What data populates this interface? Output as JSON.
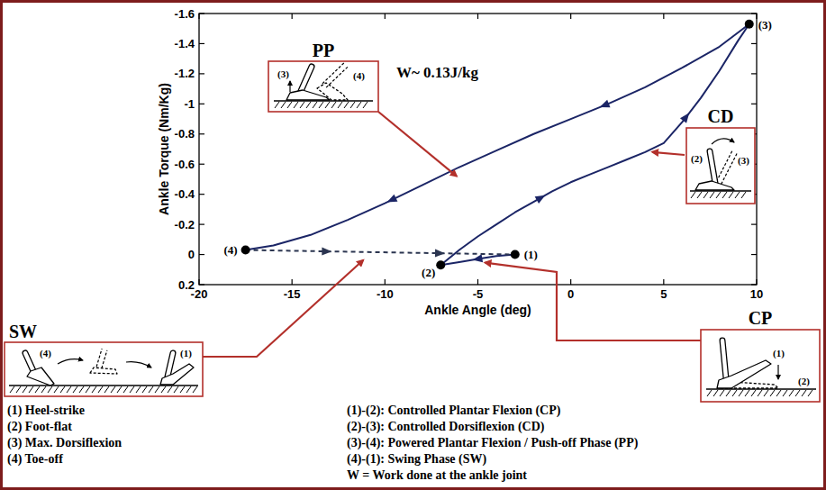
{
  "chart_data": {
    "type": "line",
    "xlabel": "Ankle Angle (deg)",
    "ylabel": "Ankle Torque (Nm/Kg)",
    "xlim": [
      -20,
      10
    ],
    "xticks": [
      -20,
      -15,
      -10,
      -5,
      0,
      5,
      10
    ],
    "ylim": [
      0.2,
      -1.6
    ],
    "yticks": [
      0.2,
      0,
      -0.2,
      -0.4,
      -0.6,
      -0.8,
      -1,
      -1.2,
      -1.4,
      -1.6
    ],
    "grid": false,
    "annotation": "W~ 0.13J/kg",
    "series": [
      {
        "name": "CP",
        "color": "#1b2566",
        "line_style": "solid",
        "inset_labels": [
          "(1)",
          "(2)"
        ],
        "x": [
          -3,
          -4,
          -5,
          -6,
          -7
        ],
        "values": [
          0,
          0.01,
          0.03,
          0.05,
          0.07
        ]
      },
      {
        "name": "CD",
        "color": "#1b2566",
        "line_style": "solid",
        "inset_labels": [
          "(2)",
          "(3)"
        ],
        "x": [
          -7,
          -6,
          -5,
          -4,
          -3,
          -2,
          -1,
          0,
          1,
          2,
          3,
          4,
          5,
          6,
          7,
          8,
          9,
          9.6
        ],
        "values": [
          0.07,
          -0.03,
          -0.12,
          -0.2,
          -0.28,
          -0.35,
          -0.42,
          -0.48,
          -0.53,
          -0.58,
          -0.63,
          -0.68,
          -0.74,
          -0.88,
          -1.04,
          -1.22,
          -1.42,
          -1.53
        ]
      },
      {
        "name": "PP",
        "color": "#1b2566",
        "line_style": "solid",
        "inset_labels": [
          "(3)",
          "(4)"
        ],
        "x": [
          9.6,
          8,
          6,
          4,
          2,
          0,
          -2,
          -4,
          -6,
          -8,
          -10,
          -12,
          -14,
          -16,
          -17.5
        ],
        "values": [
          -1.53,
          -1.38,
          -1.24,
          -1.11,
          -1,
          -0.9,
          -0.8,
          -0.69,
          -0.58,
          -0.46,
          -0.34,
          -0.23,
          -0.13,
          -0.06,
          -0.03
        ]
      },
      {
        "name": "SW",
        "color": "#2b3550",
        "line_style": "dashed",
        "inset_labels": [
          "(4)",
          "(1)"
        ],
        "x": [
          -17.5,
          -3
        ],
        "values": [
          -0.03,
          0
        ]
      }
    ],
    "key_points": {
      "labels": [
        "(1)",
        "(2)",
        "(3)",
        "(4)"
      ],
      "x": [
        -3,
        -7,
        9.6,
        -17.5
      ],
      "values": [
        0,
        0.07,
        -1.53,
        -0.03
      ],
      "color": "#000000"
    },
    "events": [
      "(1) Heel-strike",
      "(2) Foot-flat",
      "(3) Max. Dorsiflexion",
      "(4) Toe-off"
    ],
    "phases": [
      "(1)-(2): Controlled Plantar Flexion (CP)",
      "(2)-(3): Controlled Dorsiflexion (CD)",
      "(3)-(4): Powered Plantar Flexion / Push-off Phase (PP)",
      "(4)-(1): Swing Phase (SW)"
    ],
    "note": "W = Work done at the ankle joint"
  }
}
